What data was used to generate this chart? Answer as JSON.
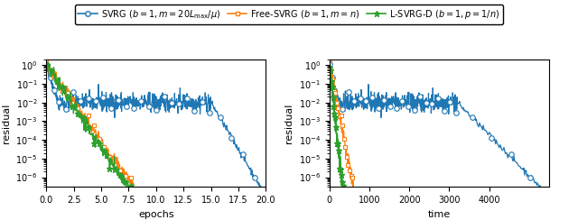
{
  "svrg_color": "#1f77b4",
  "free_svrg_color": "#ff7f0e",
  "lsvrgd_color": "#2ca02c",
  "xlabel_left": "epochs",
  "xlabel_right": "time",
  "ylabel": "residual",
  "xlim_left": [
    0,
    20
  ],
  "xlim_right": [
    0,
    5500
  ],
  "xticks_right": [
    0,
    1000,
    2000,
    3000,
    4000
  ],
  "ylim": [
    3e-07,
    2.0
  ],
  "seed": 0,
  "legend_svrg": "SVRG ($b = 1,\\, m = 20L_{\\rm max}/\\mu$)",
  "legend_free": "Free-SVRG ($b = 1,\\, m = n$)",
  "legend_lsvrgd": "L-SVRG-D ($b = 1,\\, p = 1/n$)"
}
